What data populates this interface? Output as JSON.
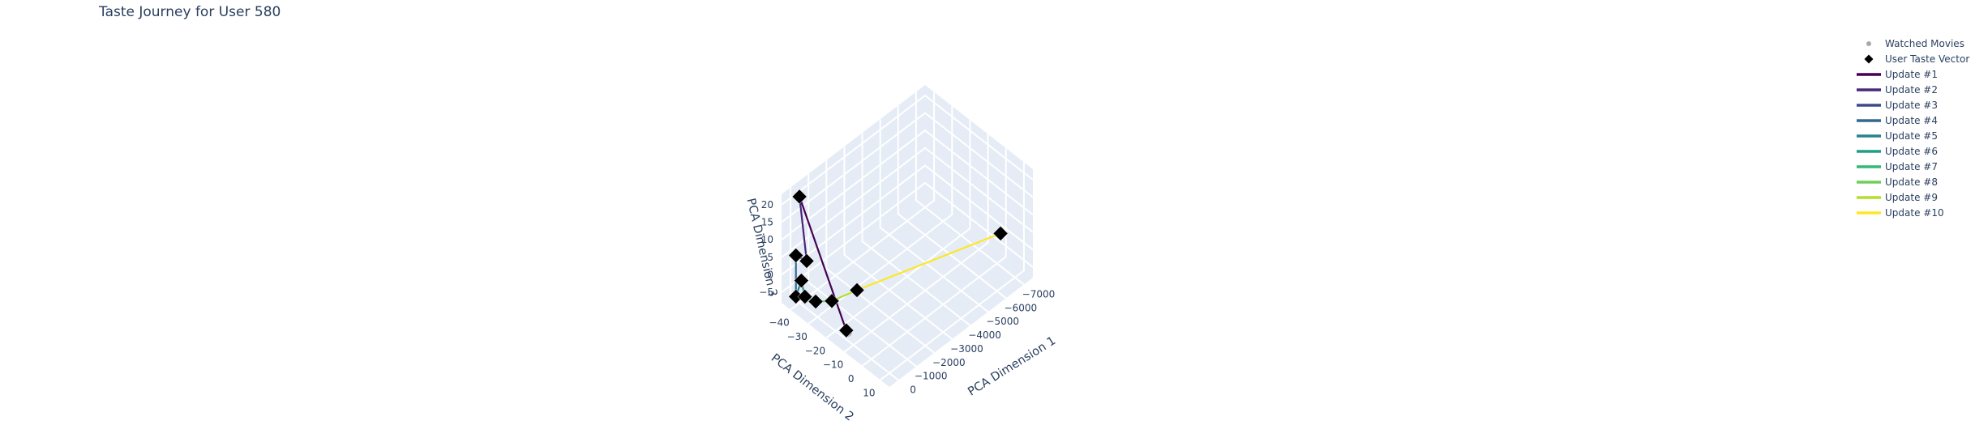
{
  "chart_data": {
    "type": "scatter3d",
    "title": "Taste Journey for User 580",
    "axes": {
      "x": {
        "label": "PCA Dimension 1",
        "ticks": [
          "0",
          "−1000",
          "−2000",
          "−3000",
          "−4000",
          "−5000",
          "−6000",
          "−7000"
        ],
        "range": [
          500,
          -7500
        ]
      },
      "y": {
        "label": "PCA Dimension 2",
        "ticks": [
          "−40",
          "−30",
          "−20",
          "−10",
          "0",
          "10"
        ],
        "range": [
          -45,
          15
        ]
      },
      "z": {
        "label": "PCA Dimension 3",
        "ticks": [
          "−5",
          "0",
          "5",
          "10",
          "15",
          "20"
        ],
        "range": [
          -8,
          23
        ]
      }
    },
    "series": [
      {
        "name": "Watched Movies",
        "kind": "markers",
        "symbol": "circle",
        "color": "#a9a9a9"
      },
      {
        "name": "User Taste Vector",
        "kind": "markers",
        "symbol": "diamond",
        "color": "#000000"
      },
      {
        "name": "Update #1",
        "kind": "line",
        "color": "#440154"
      },
      {
        "name": "Update #2",
        "kind": "line",
        "color": "#482878"
      },
      {
        "name": "Update #3",
        "kind": "line",
        "color": "#3e4989"
      },
      {
        "name": "Update #4",
        "kind": "line",
        "color": "#31688e"
      },
      {
        "name": "Update #5",
        "kind": "line",
        "color": "#26828e"
      },
      {
        "name": "Update #6",
        "kind": "line",
        "color": "#1f9e89"
      },
      {
        "name": "Update #7",
        "kind": "line",
        "color": "#35b779"
      },
      {
        "name": "Update #8",
        "kind": "line",
        "color": "#6ece58"
      },
      {
        "name": "Update #9",
        "kind": "line",
        "color": "#b5de2b"
      },
      {
        "name": "Update #10",
        "kind": "line",
        "color": "#fde725"
      }
    ],
    "taste_vectors": [
      {
        "x": -200,
        "y": -16,
        "z": -7
      },
      {
        "x": -300,
        "y": -43,
        "z": 20
      },
      {
        "x": -200,
        "y": -38,
        "z": 4
      },
      {
        "x": -100,
        "y": -43,
        "z": 4
      },
      {
        "x": 0,
        "y": -42,
        "z": -7
      },
      {
        "x": -100,
        "y": -40,
        "z": -2
      },
      {
        "x": 0,
        "y": -37,
        "z": -5
      },
      {
        "x": 0,
        "y": -31,
        "z": -4
      },
      {
        "x": -100,
        "y": -23,
        "z": -1
      },
      {
        "x": -1200,
        "y": -20,
        "z": -1
      },
      {
        "x": -7300,
        "y": -1,
        "z": -1
      }
    ],
    "watched_movies": [
      {
        "x": -200,
        "y": -16,
        "z": -7
      }
    ],
    "grid": true,
    "legend_position": "top-right",
    "background_color": "#e5ecf6"
  }
}
